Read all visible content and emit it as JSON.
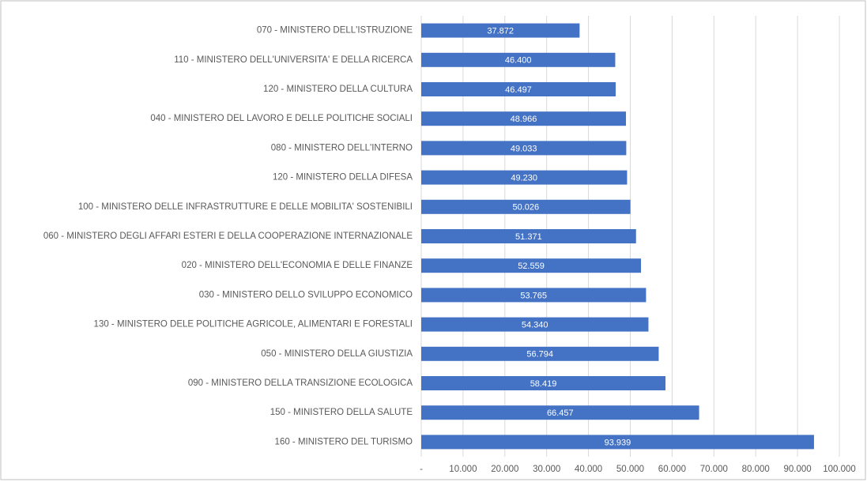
{
  "chart_data": {
    "type": "barh",
    "categories": [
      "070 - MINISTERO DELL'ISTRUZIONE",
      "110 - MINISTERO DELL'UNIVERSITA' E DELLA RICERCA",
      "120 - MINISTERO DELLA CULTURA",
      "040 - MINISTERO DEL LAVORO E DELLE POLITICHE SOCIALI",
      "080 - MINISTERO DELL'INTERNO",
      "120 - MINISTERO DELLA DIFESA",
      "100 - MINISTERO DELLE INFRASTRUTTURE E DELLE MOBILITA' SOSTENIBILI",
      "060 - MINISTERO DEGLI AFFARI ESTERI E DELLA COOPERAZIONE INTERNAZIONALE",
      "020 - MINISTERO DELL'ECONOMIA E DELLE FINANZE",
      "030 - MINISTERO DELLO SVILUPPO ECONOMICO",
      "130 - MINISTERO DELE POLITICHE AGRICOLE, ALIMENTARI E FORESTALI",
      "050 - MINISTERO DELLA GIUSTIZIA",
      "090 - MINISTERO DELLA TRANSIZIONE ECOLOGICA",
      "150 - MINISTERO DELLA SALUTE",
      "160 - MINISTERO DEL TURISMO"
    ],
    "values": [
      37872,
      46400,
      46497,
      48966,
      49033,
      49230,
      50026,
      51371,
      52559,
      53765,
      54340,
      56794,
      58419,
      66457,
      93939
    ],
    "value_labels": [
      "37.872",
      "46.400",
      "46.497",
      "48.966",
      "49.033",
      "49.230",
      "50.026",
      "51.371",
      "52.559",
      "53.765",
      "54.340",
      "56.794",
      "58.419",
      "66.457",
      "93.939"
    ],
    "color": "#4472c4",
    "xlim": [
      0,
      100000
    ],
    "xticks": [
      {
        "value": 0,
        "label": "-"
      },
      {
        "value": 10000,
        "label": "10.000"
      },
      {
        "value": 20000,
        "label": "20.000"
      },
      {
        "value": 30000,
        "label": "30.000"
      },
      {
        "value": 40000,
        "label": "40.000"
      },
      {
        "value": 50000,
        "label": "50.000"
      },
      {
        "value": 60000,
        "label": "60.000"
      },
      {
        "value": 70000,
        "label": "70.000"
      },
      {
        "value": 80000,
        "label": "80.000"
      },
      {
        "value": 90000,
        "label": "90.000"
      },
      {
        "value": 100000,
        "label": "100.000"
      }
    ],
    "grid": true
  }
}
